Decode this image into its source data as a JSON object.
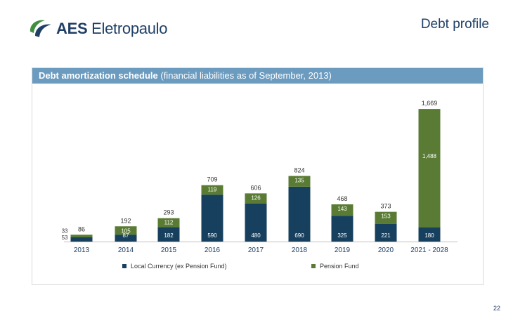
{
  "header": {
    "logo_text_bold": "AES",
    "logo_text_rest": " Eletropaulo",
    "title": "Debt profile"
  },
  "panel": {
    "title_bold": "Debt amortization schedule",
    "title_rest": " (financial liabilities as of September, 2013)"
  },
  "colors": {
    "local": "#17405f",
    "pension": "#5a7b34",
    "header_bar": "#6b9bbf",
    "brand_blue": "#1f3f66",
    "brand_green": "#3f8f3f"
  },
  "chart_data": {
    "type": "bar",
    "stacked": true,
    "categories": [
      "2013",
      "2014",
      "2015",
      "2016",
      "2017",
      "2018",
      "2019",
      "2020",
      "2021 - 2028"
    ],
    "series": [
      {
        "name": "Local Currency (ex Pension Fund)",
        "values": [
          53,
          87,
          182,
          590,
          480,
          690,
          325,
          221,
          180
        ],
        "labels": [
          "53",
          "87",
          "182",
          "590",
          "480",
          "690",
          "325",
          "221",
          "180"
        ]
      },
      {
        "name": "Pension Fund",
        "values": [
          33,
          105,
          112,
          119,
          126,
          135,
          143,
          153,
          1488
        ],
        "labels": [
          "33",
          "105",
          "112",
          "119",
          "126",
          "135",
          "143",
          "153",
          "1,488"
        ]
      }
    ],
    "totals": [
      "86",
      "192",
      "293",
      "709",
      "606",
      "824",
      "468",
      "373",
      "1,669"
    ],
    "total_values": [
      86,
      192,
      293,
      709,
      606,
      824,
      468,
      373,
      1669
    ],
    "ylim": [
      0,
      1669
    ],
    "legend": [
      "Local Currency (ex Pension Fund)",
      "Pension Fund"
    ],
    "legend_position": "bottom"
  },
  "footer": {
    "page_number": "22"
  }
}
